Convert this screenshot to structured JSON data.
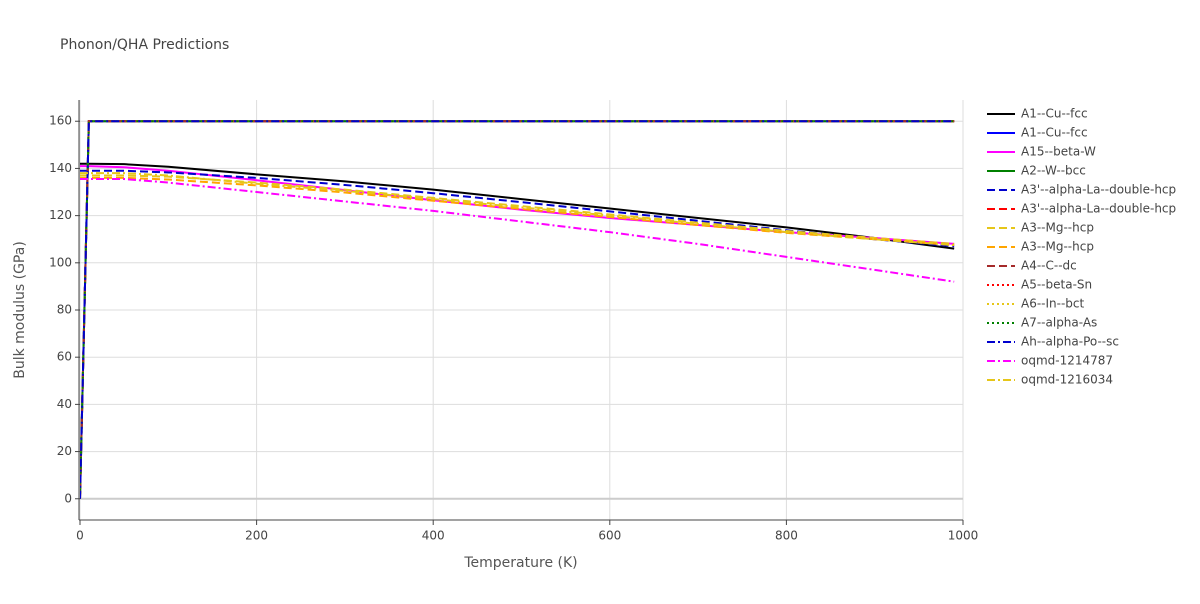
{
  "chart_data": {
    "type": "line",
    "title": "Phonon/QHA Predictions",
    "x_label": "Temperature (K)",
    "y_label": "Bulk modulus (GPa)",
    "xlim": [
      0,
      1000
    ],
    "ylim": [
      -9,
      169
    ],
    "xticks": [
      0,
      200,
      400,
      600,
      800,
      1000
    ],
    "yticks": [
      0,
      20,
      40,
      60,
      80,
      100,
      120,
      140,
      160
    ],
    "grid": true,
    "x": [
      0,
      10,
      50,
      100,
      200,
      300,
      400,
      500,
      600,
      700,
      800,
      900,
      990
    ],
    "series": [
      {
        "name": "A1--Cu--fcc",
        "color": "#000000",
        "dash": "solid",
        "values": [
          142,
          142,
          141.8,
          140.7,
          137.5,
          134.5,
          131,
          127,
          123,
          119,
          115,
          110.5,
          106
        ]
      },
      {
        "name": "A1--Cu--fcc",
        "color": "#0000ff",
        "dash": "solid",
        "values": [
          0,
          160,
          160,
          160,
          160,
          160,
          160,
          160,
          160,
          160,
          160,
          160,
          160
        ]
      },
      {
        "name": "A15--beta-W",
        "color": "#ff00ff",
        "dash": "solid",
        "values": [
          141,
          141,
          140.5,
          139,
          135,
          130.8,
          126.5,
          122.5,
          119,
          116,
          113,
          110.5,
          108
        ]
      },
      {
        "name": "A2--W--bcc",
        "color": "#008000",
        "dash": "solid",
        "values": [
          0,
          160,
          160,
          160,
          160,
          160,
          160,
          160,
          160,
          160,
          160,
          160,
          160
        ]
      },
      {
        "name": "A3'--alpha-La--double-hcp",
        "color": "#0000cd",
        "dash": "dash",
        "values": [
          139,
          139,
          139,
          138.3,
          136,
          133,
          129.5,
          125.7,
          121.8,
          117.8,
          113.8,
          110,
          107
        ]
      },
      {
        "name": "A3'--alpha-La--double-hcp",
        "color": "#ff0000",
        "dash": "dash",
        "values": [
          0,
          160,
          160,
          160,
          160,
          160,
          160,
          160,
          160,
          160,
          160,
          160,
          160
        ]
      },
      {
        "name": "A3--Mg--hcp",
        "color": "#e6c619",
        "dash": "dash",
        "values": [
          137,
          137,
          137,
          136.5,
          134,
          131,
          127.5,
          124,
          120.5,
          117,
          113.5,
          110.5,
          108
        ]
      },
      {
        "name": "A3--Mg--hcp",
        "color": "#ffa500",
        "dash": "dash",
        "values": [
          136,
          136,
          136,
          135.3,
          132.8,
          129.8,
          126.3,
          122.8,
          119.4,
          116,
          112.7,
          110,
          107.5
        ]
      },
      {
        "name": "A4--C--dc",
        "color": "#a52a2a",
        "dash": "dash",
        "values": [
          0,
          160,
          160,
          160,
          160,
          160,
          160,
          160,
          160,
          160,
          160,
          160,
          160
        ]
      },
      {
        "name": "A5--beta-Sn",
        "color": "#ff0000",
        "dash": "dot",
        "values": [
          0,
          160,
          160,
          160,
          160,
          160,
          160,
          160,
          160,
          160,
          160,
          160,
          160
        ]
      },
      {
        "name": "A6--In--bct",
        "color": "#e6c619",
        "dash": "dot",
        "values": [
          0,
          160,
          160,
          160,
          160,
          160,
          160,
          160,
          160,
          160,
          160,
          160,
          160
        ]
      },
      {
        "name": "A7--alpha-As",
        "color": "#008000",
        "dash": "dot",
        "values": [
          0,
          160,
          160,
          160,
          160,
          160,
          160,
          160,
          160,
          160,
          160,
          160,
          160
        ]
      },
      {
        "name": "Ah--alpha-Po--sc",
        "color": "#0000cd",
        "dash": "dashdot",
        "values": [
          0,
          160,
          160,
          160,
          160,
          160,
          160,
          160,
          160,
          160,
          160,
          160,
          160
        ]
      },
      {
        "name": "oqmd-1214787",
        "color": "#ff00ff",
        "dash": "dashdot",
        "values": [
          135.5,
          135.5,
          135.5,
          134,
          130,
          126,
          122,
          117.5,
          113,
          108,
          102.5,
          97,
          92
        ]
      },
      {
        "name": "oqmd-1216034",
        "color": "#e6c619",
        "dash": "dashdot",
        "values": [
          138,
          138,
          138,
          137,
          133.5,
          130.5,
          127,
          123.5,
          120,
          116.5,
          113,
          110,
          107.5
        ]
      }
    ]
  }
}
